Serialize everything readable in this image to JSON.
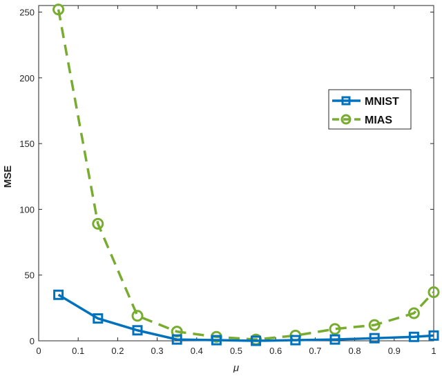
{
  "chart_data": {
    "type": "line",
    "title": "",
    "xlabel": "μ",
    "ylabel": "MSE",
    "xlim": [
      0,
      1
    ],
    "ylim": [
      0,
      255
    ],
    "xticks": [
      0,
      0.1,
      0.2,
      0.3,
      0.4,
      0.5,
      0.6,
      0.7,
      0.8,
      0.9,
      1
    ],
    "xtick_labels": [
      "0",
      "0.1",
      "0.2",
      "0.3",
      "0.4",
      "0.5",
      "0.6",
      "0.7",
      "0.8",
      "0.9",
      "1"
    ],
    "yticks": [
      0,
      50,
      100,
      150,
      200,
      250
    ],
    "ytick_labels": [
      "0",
      "50",
      "100",
      "150",
      "200",
      "250"
    ],
    "grid": false,
    "legend_position": "top-right",
    "x": [
      0.05,
      0.15,
      0.25,
      0.35,
      0.45,
      0.55,
      0.65,
      0.75,
      0.85,
      0.95,
      1.0
    ],
    "series": [
      {
        "name": "MNIST",
        "color": "#0072BD",
        "marker": "square",
        "style": "solid",
        "values": [
          35,
          17,
          8,
          1,
          0.5,
          0,
          0.5,
          1,
          2,
          3,
          4
        ]
      },
      {
        "name": "MIAS",
        "color": "#77AC30",
        "marker": "circle",
        "style": "dashed",
        "values": [
          252,
          89,
          19,
          7,
          3,
          1,
          4,
          9,
          12,
          21,
          37
        ]
      }
    ]
  }
}
